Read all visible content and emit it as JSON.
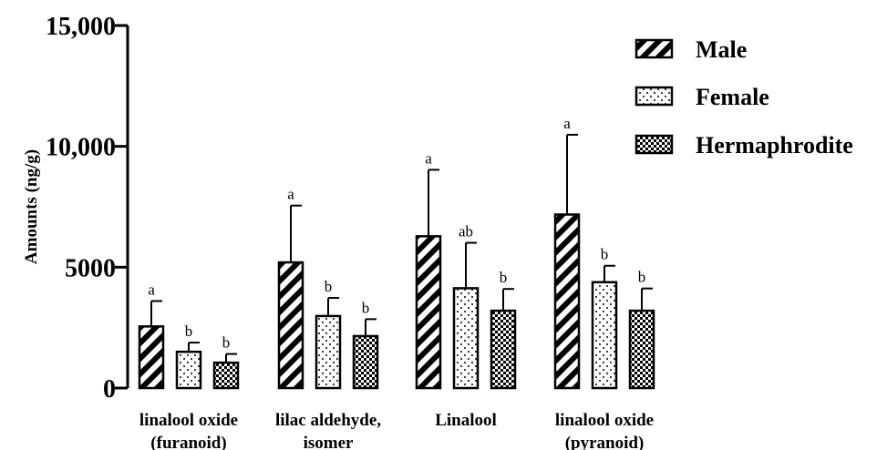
{
  "chart_data": {
    "type": "bar",
    "title": "",
    "ylabel": "Amounts (ng/g)",
    "xlabel": "",
    "ylim": [
      0,
      15000
    ],
    "yticks": [
      {
        "value": 0,
        "label": "0"
      },
      {
        "value": 5000,
        "label": "5000"
      },
      {
        "value": 10000,
        "label": "10,000"
      },
      {
        "value": 15000,
        "label": "15,000"
      }
    ],
    "categories": [
      [
        "linalool oxide",
        "(furanoid)"
      ],
      [
        "lilac aldehyde,",
        "isomer"
      ],
      [
        "Linalool"
      ],
      [
        "linalool oxide",
        "(pyranoid)"
      ]
    ],
    "legend_position": "top-right",
    "series": [
      {
        "name": "Male",
        "pattern": "stripes",
        "values": [
          2550,
          5200,
          6280,
          7180
        ],
        "errors": [
          1050,
          2350,
          2750,
          3300
        ],
        "letters": [
          "a",
          "a",
          "a",
          "a"
        ]
      },
      {
        "name": "Female",
        "pattern": "dots",
        "values": [
          1500,
          2980,
          4130,
          4380
        ],
        "errors": [
          380,
          750,
          1880,
          680
        ],
        "letters": [
          "b",
          "b",
          "ab",
          "b"
        ]
      },
      {
        "name": "Hermaphrodite",
        "pattern": "checker",
        "values": [
          1050,
          2150,
          3200,
          3200
        ],
        "errors": [
          360,
          700,
          900,
          920
        ],
        "letters": [
          "b",
          "b",
          "b",
          "b"
        ]
      }
    ],
    "colors": {
      "fill": "#ffffff",
      "stroke": "#000000"
    }
  }
}
